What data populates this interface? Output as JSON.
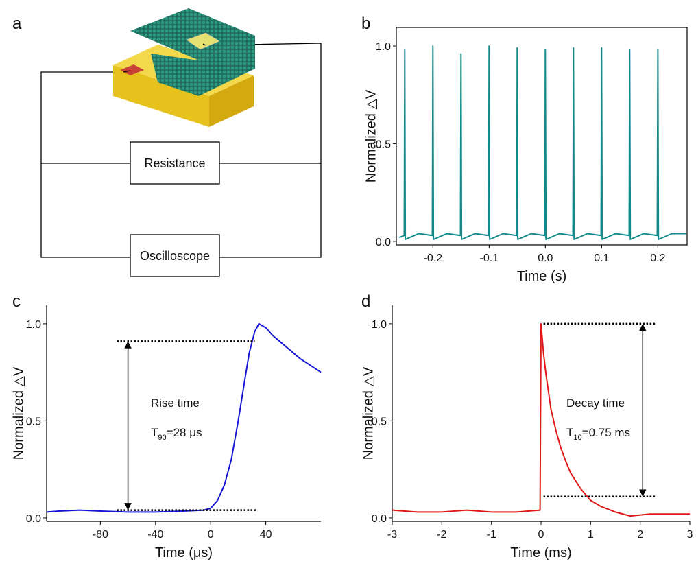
{
  "diagram": {
    "label": "a",
    "boxes": [
      "Resistance",
      "Oscilloscope"
    ]
  },
  "chart_data": [
    {
      "type": "line",
      "label": "b",
      "frame": true,
      "x_label": "Time (s)",
      "y_label": "Normalized △V",
      "xlim": [
        -0.265,
        0.252
      ],
      "ylim": [
        -0.018,
        1.095
      ],
      "xticks": [
        -0.2,
        -0.1,
        {
          "value": 0,
          "label": "0.0"
        },
        0.1,
        0.2
      ],
      "yticks": [
        {
          "value": 0,
          "label": "0.0"
        },
        0.5,
        {
          "value": 1,
          "label": "1.0"
        }
      ],
      "series": [
        {
          "color": "#138a8a",
          "x": [
            -0.26,
            -0.251,
            -0.25,
            -0.249,
            -0.225,
            -0.201,
            -0.2,
            -0.199,
            -0.175,
            -0.151,
            -0.15,
            -0.149,
            -0.125,
            -0.101,
            -0.1,
            -0.099,
            -0.075,
            -0.051,
            -0.05,
            -0.049,
            -0.025,
            -0.001,
            0,
            0.001,
            0.025,
            0.049,
            0.05,
            0.051,
            0.075,
            0.099,
            0.1,
            0.101,
            0.125,
            0.149,
            0.15,
            0.151,
            0.175,
            0.199,
            0.2,
            0.201,
            0.225,
            0.25
          ],
          "values": [
            0.02,
            0.03,
            0.98,
            0.01,
            0.04,
            0.03,
            1.0,
            0.01,
            0.04,
            0.03,
            0.96,
            0.01,
            0.04,
            0.03,
            1.0,
            0.01,
            0.04,
            0.03,
            0.99,
            0.01,
            0.04,
            0.03,
            0.98,
            0.01,
            0.04,
            0.03,
            0.99,
            0.01,
            0.04,
            0.03,
            0.99,
            0.01,
            0.04,
            0.03,
            0.98,
            0.01,
            0.04,
            0.03,
            0.98,
            0.01,
            0.04,
            0.04
          ]
        }
      ]
    },
    {
      "type": "line",
      "label": "c",
      "frame": false,
      "x_label": "Time (μs)",
      "y_label": "Normalized △V",
      "xlim": [
        -119,
        80
      ],
      "ylim": [
        -0.018,
        1.095
      ],
      "xticks": [
        -80,
        -40,
        0,
        40
      ],
      "yticks": [
        {
          "value": 0,
          "label": "0.0"
        },
        0.5,
        {
          "value": 1,
          "label": "1.0"
        }
      ],
      "series": [
        {
          "color": "#1414d4",
          "x": [
            -119,
            -110,
            -95,
            -80,
            -60,
            -40,
            -20,
            -5,
            0,
            5,
            10,
            15,
            20,
            25,
            28,
            32,
            35,
            40,
            45,
            55,
            65,
            80
          ],
          "values": [
            0.03,
            0.035,
            0.04,
            0.035,
            0.03,
            0.03,
            0.035,
            0.04,
            0.05,
            0.09,
            0.17,
            0.3,
            0.5,
            0.72,
            0.85,
            0.96,
            1.0,
            0.98,
            0.94,
            0.88,
            0.82,
            0.75
          ]
        }
      ],
      "hlines": [
        {
          "y": 0.91,
          "xmin": -68,
          "xmax": 32
        },
        {
          "y": 0.04,
          "xmin": -68,
          "xmax": 33
        }
      ],
      "arrow": {
        "x": -60,
        "y": [
          0.04,
          0.91
        ]
      },
      "annotations": [
        {
          "text": "Rise time"
        },
        {
          "text": "T",
          "sub": "90",
          "rest": "=28 μs"
        }
      ]
    },
    {
      "type": "line",
      "label": "d",
      "frame": false,
      "x_label": "Time (ms)",
      "y_label": "Normalized △V",
      "xlim": [
        -3,
        3
      ],
      "ylim": [
        -0.018,
        1.095
      ],
      "xticks": [
        -3,
        -2,
        -1,
        0,
        1,
        2,
        3
      ],
      "yticks": [
        {
          "value": 0,
          "label": "0.0"
        },
        0.5,
        {
          "value": 1,
          "label": "1.0"
        }
      ],
      "series": [
        {
          "color": "#e01818",
          "x": [
            -3,
            -2.5,
            -2,
            -1.5,
            -1,
            -0.5,
            -0.02,
            0,
            0.05,
            0.1,
            0.2,
            0.3,
            0.4,
            0.5,
            0.6,
            0.8,
            1.0,
            1.2,
            1.5,
            1.8,
            2.2,
            2.6,
            3
          ],
          "values": [
            0.04,
            0.03,
            0.03,
            0.04,
            0.03,
            0.03,
            0.04,
            1.0,
            0.85,
            0.74,
            0.56,
            0.45,
            0.36,
            0.29,
            0.23,
            0.15,
            0.09,
            0.06,
            0.03,
            0.01,
            0.02,
            0.02,
            0.02
          ]
        }
      ],
      "hlines": [
        {
          "y": 1.0,
          "xmin": 0.05,
          "xmax": 2.3
        },
        {
          "y": 0.11,
          "xmin": 0.05,
          "xmax": 2.3
        }
      ],
      "arrow": {
        "x": 2.05,
        "y": [
          0.11,
          1.0
        ]
      },
      "annotations": [
        {
          "text": "Decay time"
        },
        {
          "text": "T",
          "sub": "10",
          "rest": "=0.75 ms"
        }
      ]
    }
  ]
}
